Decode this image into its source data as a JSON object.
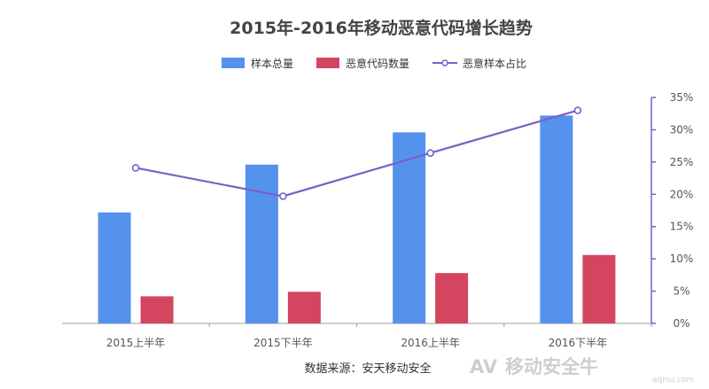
{
  "chart_data": {
    "type": "bar",
    "title": "2015年-2016年移动恶意代码增长趋势",
    "categories": [
      "2015上半年",
      "2015下半年",
      "2016上半年",
      "2016下半年"
    ],
    "series": [
      {
        "name": "样本总量",
        "kind": "bar",
        "axis": "left",
        "color": "#5592ee",
        "values": [
          17.2,
          24.6,
          29.6,
          32.2
        ]
      },
      {
        "name": "恶意代码数量",
        "kind": "bar",
        "axis": "left",
        "color": "#d4455f",
        "values": [
          4.2,
          4.9,
          7.8,
          10.6
        ]
      },
      {
        "name": "恶意样本占比",
        "kind": "line",
        "axis": "right",
        "color": "#7b5fc6",
        "values": [
          24.1,
          19.7,
          26.4,
          33.0
        ]
      }
    ],
    "y_left_range": [
      0,
      35
    ],
    "y_right": {
      "ticks": [
        "0%",
        "5%",
        "10%",
        "15%",
        "20%",
        "25%",
        "30%",
        "35%"
      ],
      "range": [
        0,
        35
      ]
    },
    "legend_position": "top-center",
    "grid": false,
    "source": "数据来源：安天移动安全"
  },
  "watermark": {
    "logo_text": "AV",
    "main_text": "移动安全牛",
    "sub_text": "aqniu.com"
  }
}
